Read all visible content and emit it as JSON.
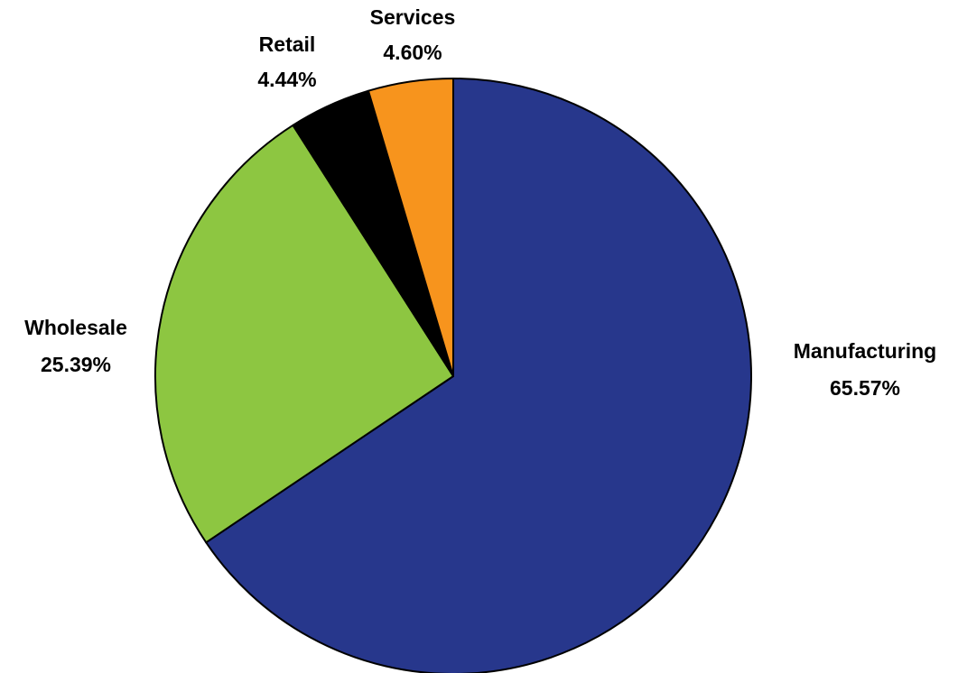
{
  "chart_data": {
    "type": "pie",
    "start_angle_deg": 0,
    "direction": "clockwise",
    "slices": [
      {
        "name": "Manufacturing",
        "value": 65.57,
        "label": "65.57%",
        "color": "#27378c"
      },
      {
        "name": "Wholesale",
        "value": 25.39,
        "label": "25.39%",
        "color": "#8dc641"
      },
      {
        "name": "Retail",
        "value": 4.44,
        "label": "4.44%",
        "color": "#000000"
      },
      {
        "name": "Services",
        "value": 4.6,
        "label": "4.60%",
        "color": "#f7941d"
      }
    ]
  }
}
